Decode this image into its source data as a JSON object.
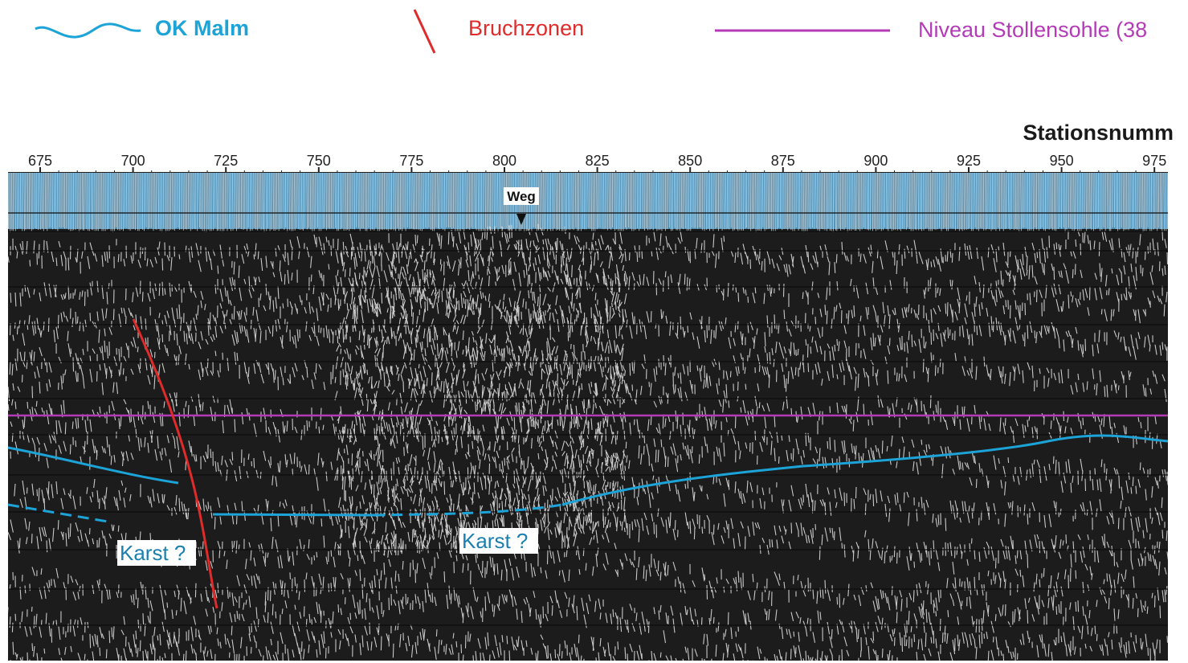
{
  "legend": {
    "malm": {
      "label": "OK Malm",
      "color": "#1ca3d8"
    },
    "fault": {
      "label": "Bruchzonen",
      "color": "#e02b2b"
    },
    "level": {
      "label": "Niveau Stollensohle (38",
      "color": "#b43bb8"
    }
  },
  "axis": {
    "title": "Stationsnumm",
    "ticks": [
      "675",
      "700",
      "725",
      "750",
      "775",
      "800",
      "825",
      "850",
      "875",
      "900",
      "925",
      "950",
      "975"
    ]
  },
  "section": {
    "marker": "Weg",
    "annotations": [
      "Karst ?",
      "Karst ?"
    ]
  },
  "colors": {
    "band": "#4f8fb4",
    "background": "#1c1c1c",
    "noise": "#e8e8e8"
  }
}
